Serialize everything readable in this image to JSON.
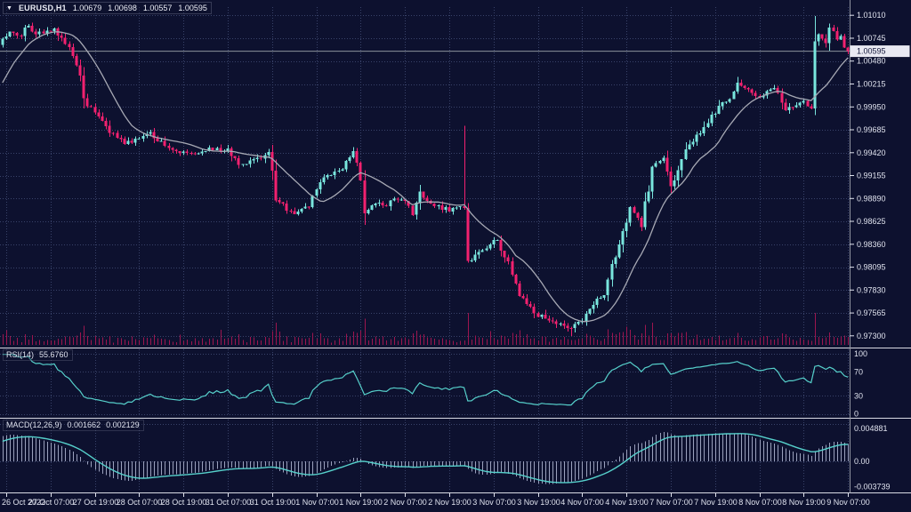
{
  "header": {
    "dropdown_icon": "▼",
    "symbol": "EURUSD,H1",
    "open": "1.00679",
    "high": "1.00698",
    "low": "1.00557",
    "close": "1.00595"
  },
  "colors": {
    "background": "#0d112f",
    "grid": "#39436a",
    "bull": "#79e6de",
    "bear": "#f2216f",
    "volume": "#9c164f",
    "ma": "#a7a9b4",
    "oscillator": "#56d0cb",
    "macd_histogram": "#9aa0bc",
    "separator": "#d9dae4",
    "axis_text": "#dfe2ee",
    "bid_line": "#8d929c",
    "price_tag_bg": "#e9e9f2",
    "price_tag_text": "#13173a"
  },
  "chart_data": {
    "type": "candlestick",
    "symbol": "EURUSD",
    "timeframe": "H1",
    "title": "EURUSD,H1 candlestick chart with volume, moving average, RSI(14) and MACD(12,26,9)",
    "last_bar": {
      "open": 1.00679,
      "high": 1.00698,
      "low": 1.00557,
      "close": 1.00595
    },
    "current_price": "1.00595",
    "ylim": [
      0.97185,
      1.01105
    ],
    "price_ticks": [
      "1.01010",
      "1.00745",
      "1.00480",
      "1.00215",
      "0.99950",
      "0.99685",
      "0.99420",
      "0.99155",
      "0.98890",
      "0.98625",
      "0.98360",
      "0.98095",
      "0.97830",
      "0.97565",
      "0.97300"
    ],
    "x_labels": [
      "26 Oct 2022",
      "27 Oct 07:00",
      "27 Oct 19:00",
      "28 Oct 07:00",
      "28 Oct 19:00",
      "31 Oct 07:00",
      "31 Oct 19:00",
      "1 Nov 07:00",
      "1 Nov 19:00",
      "2 Nov 07:00",
      "2 Nov 19:00",
      "3 Nov 07:00",
      "3 Nov 19:00",
      "4 Nov 07:00",
      "4 Nov 19:00",
      "7 Nov 07:00",
      "7 Nov 19:00",
      "8 Nov 07:00",
      "8 Nov 19:00",
      "9 Nov 07:00"
    ],
    "bars_per_label": 12,
    "has_volume": true,
    "ma_period": 14,
    "pre_anchors": [
      [
        -20,
        0.993
      ],
      [
        -12,
        0.9975
      ],
      [
        -6,
        1.003
      ],
      [
        -2,
        1.0062
      ]
    ],
    "price_path_anchors": [
      [
        0,
        1.0074
      ],
      [
        2,
        1.0082
      ],
      [
        5,
        1.0077
      ],
      [
        7,
        1.0089
      ],
      [
        9,
        1.0079
      ],
      [
        12,
        1.0083
      ],
      [
        14,
        1.0086
      ],
      [
        16,
        1.0075
      ],
      [
        18,
        1.0064
      ],
      [
        20,
        1.0043
      ],
      [
        23,
        0.9996
      ],
      [
        26,
        0.9984
      ],
      [
        29,
        0.9965
      ],
      [
        33,
        0.9952
      ],
      [
        36,
        0.9958
      ],
      [
        40,
        0.9966
      ],
      [
        44,
        0.995
      ],
      [
        48,
        0.9942
      ],
      [
        52,
        0.994
      ],
      [
        56,
        0.9948
      ],
      [
        59,
        0.9944
      ],
      [
        61,
        0.9947
      ],
      [
        64,
        0.9928
      ],
      [
        67,
        0.9933
      ],
      [
        70,
        0.9935
      ],
      [
        72,
        0.9943
      ],
      [
        74,
        0.9887
      ],
      [
        79,
        0.9871
      ],
      [
        83,
        0.9879
      ],
      [
        86,
        0.9908
      ],
      [
        91,
        0.9921
      ],
      [
        95,
        0.9944
      ],
      [
        97,
        0.991
      ],
      [
        98,
        0.9872
      ],
      [
        101,
        0.9883
      ],
      [
        104,
        0.988
      ],
      [
        106,
        0.9889
      ],
      [
        109,
        0.9886
      ],
      [
        111,
        0.987
      ],
      [
        113,
        0.9897
      ],
      [
        115,
        0.9886
      ],
      [
        118,
        0.9881
      ],
      [
        121,
        0.9874
      ],
      [
        124,
        0.988
      ],
      [
        125,
        0.9878
      ],
      [
        126,
        0.9817
      ],
      [
        128,
        0.9824
      ],
      [
        131,
        0.9831
      ],
      [
        134,
        0.9841
      ],
      [
        136,
        0.9821
      ],
      [
        138,
        0.9801
      ],
      [
        140,
        0.9776
      ],
      [
        144,
        0.9756
      ],
      [
        148,
        0.9748
      ],
      [
        151,
        0.9744
      ],
      [
        154,
        0.9739
      ],
      [
        157,
        0.9747
      ],
      [
        160,
        0.9766
      ],
      [
        163,
        0.9777
      ],
      [
        166,
        0.9821
      ],
      [
        168,
        0.9851
      ],
      [
        170,
        0.9879
      ],
      [
        173,
        0.9856
      ],
      [
        176,
        0.9926
      ],
      [
        179,
        0.9936
      ],
      [
        181,
        0.9903
      ],
      [
        185,
        0.9946
      ],
      [
        188,
        0.9963
      ],
      [
        192,
        0.9986
      ],
      [
        196,
        1.0001
      ],
      [
        199,
        1.0023
      ],
      [
        203,
        1.0011
      ],
      [
        205,
        1.0006
      ],
      [
        209,
        1.0017
      ],
      [
        212,
        0.9991
      ],
      [
        215,
        0.9997
      ],
      [
        217,
        1.0002
      ],
      [
        219,
        0.9993
      ],
      [
        220,
        1.0071
      ],
      [
        221,
        1.0079
      ],
      [
        223,
        1.0069
      ],
      [
        224,
        1.0087
      ],
      [
        226,
        1.0073
      ],
      [
        227,
        1.0077
      ],
      [
        229,
        1.00595
      ]
    ],
    "wick_overrides": [
      {
        "i": 125,
        "high": 0.9973
      },
      {
        "i": 154,
        "low": 0.973
      },
      {
        "i": 220,
        "high": 1.01
      }
    ],
    "indicators": {
      "rsi": {
        "label": "RSI(14)",
        "value": "55.6760",
        "period": 14,
        "levels": [
          "100",
          "70",
          "30",
          "0"
        ]
      },
      "macd": {
        "label": "MACD(12,26,9)",
        "value_main": "0.001662",
        "value_signal": "0.002129",
        "fast": 12,
        "slow": 26,
        "signal": 9,
        "axis_ticks": [
          "0.004881",
          "0.00",
          "-0.003739"
        ]
      }
    }
  }
}
